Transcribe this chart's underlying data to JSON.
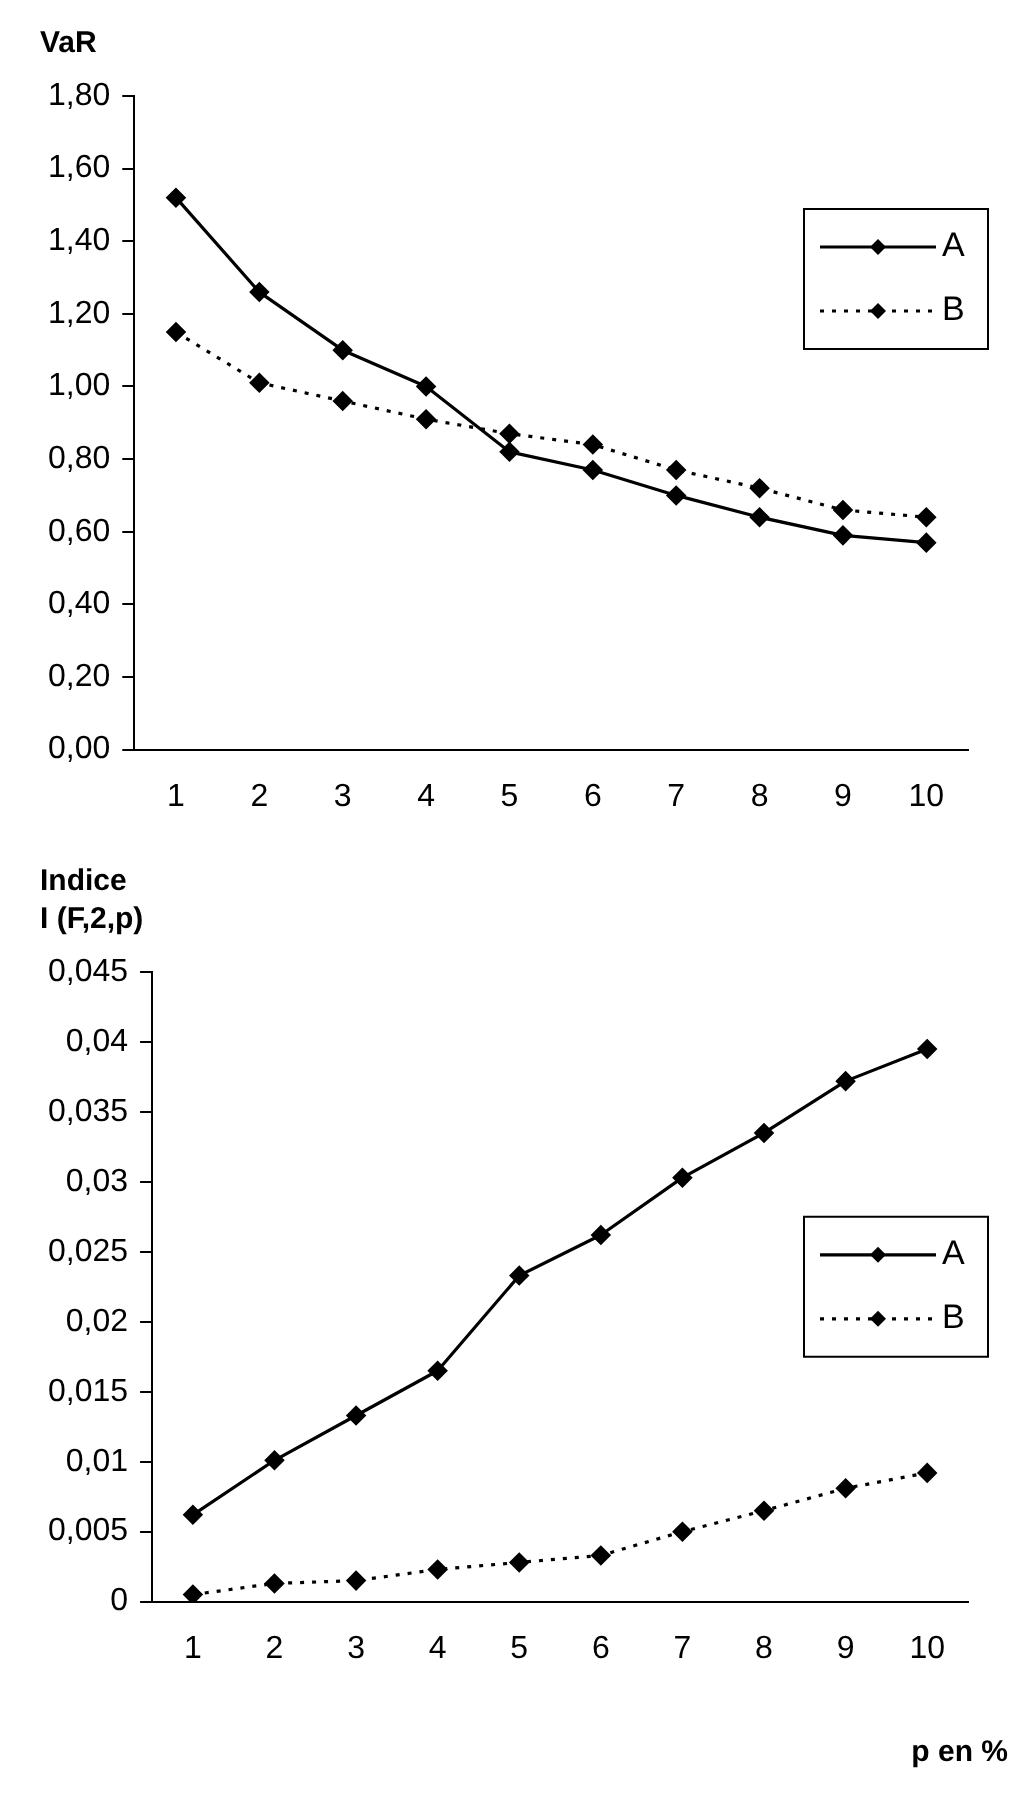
{
  "chart_data": [
    {
      "type": "line",
      "ylabel": "VaR",
      "categories": [
        "1",
        "2",
        "3",
        "4",
        "5",
        "6",
        "7",
        "8",
        "9",
        "10"
      ],
      "series": [
        {
          "name": "A",
          "color": "#000000",
          "line_style": "solid",
          "values": [
            1.52,
            1.26,
            1.1,
            1.0,
            0.82,
            0.77,
            0.7,
            0.64,
            0.59,
            0.57
          ]
        },
        {
          "name": "B",
          "color": "#000000",
          "line_style": "dotted",
          "values": [
            1.15,
            1.01,
            0.96,
            0.91,
            0.87,
            0.84,
            0.77,
            0.72,
            0.66,
            0.64
          ]
        }
      ],
      "ylim": [
        0,
        1.8
      ],
      "yticks": [
        {
          "value": 0,
          "label": "0,00"
        },
        {
          "value": 0.2,
          "label": "0,20"
        },
        {
          "value": 0.4,
          "label": "0,40"
        },
        {
          "value": 0.6,
          "label": "0,60"
        },
        {
          "value": 0.8,
          "label": "0,80"
        },
        {
          "value": 1.0,
          "label": "1,00"
        },
        {
          "value": 1.2,
          "label": "1,20"
        },
        {
          "value": 1.4,
          "label": "1,40"
        },
        {
          "value": 1.6,
          "label": "1,60"
        },
        {
          "value": 1.8,
          "label": "1,80"
        }
      ],
      "grid": false,
      "legend": "right",
      "marker": "diamond"
    },
    {
      "type": "line",
      "ylabel": "Indice\nI (F,2,p)",
      "xlabel": "p en %",
      "categories": [
        "1",
        "2",
        "3",
        "4",
        "5",
        "6",
        "7",
        "8",
        "9",
        "10"
      ],
      "series": [
        {
          "name": "A",
          "color": "#000000",
          "line_style": "solid",
          "values": [
            0.0062,
            0.0101,
            0.0133,
            0.0165,
            0.0233,
            0.0262,
            0.0303,
            0.0335,
            0.0372,
            0.0395
          ]
        },
        {
          "name": "B",
          "color": "#000000",
          "line_style": "dotted",
          "values": [
            0.0005,
            0.0013,
            0.0015,
            0.0023,
            0.0028,
            0.0033,
            0.005,
            0.0065,
            0.0081,
            0.0092
          ]
        }
      ],
      "ylim": [
        0,
        0.045
      ],
      "yticks": [
        0,
        {
          "value": 0.005,
          "label": "0,005"
        },
        {
          "value": 0.01,
          "label": "0,01"
        },
        {
          "value": 0.015,
          "label": "0,015"
        },
        {
          "value": 0.02,
          "label": "0,02"
        },
        {
          "value": 0.025,
          "label": "0,025"
        },
        {
          "value": 0.03,
          "label": "0,03"
        },
        {
          "value": 0.035,
          "label": "0,035"
        },
        {
          "value": 0.04,
          "label": "0,04"
        },
        {
          "value": 0.045,
          "label": "0,045"
        }
      ],
      "grid": false,
      "legend": "right",
      "marker": "diamond"
    }
  ]
}
